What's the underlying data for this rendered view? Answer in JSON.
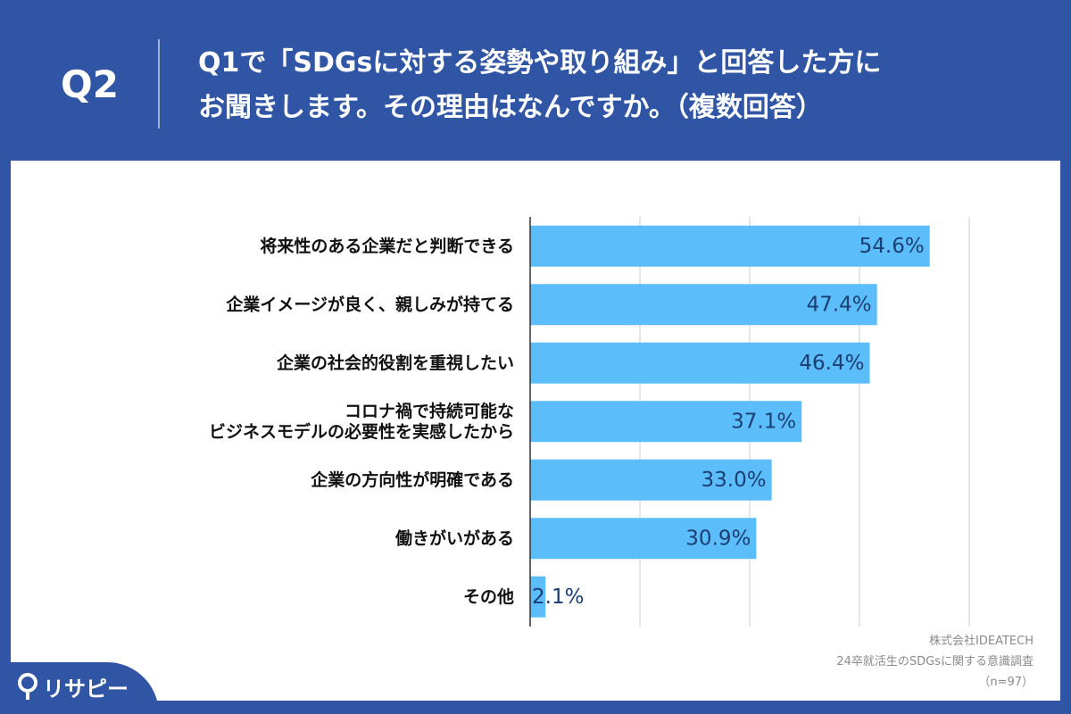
{
  "header": {
    "question_number": "Q2",
    "title_line1": "Q1で「SDGsに対する姿勢や取り組み」と回答した方に",
    "title_line2": "お聞きします。その理由はなんですか。（複数回答）"
  },
  "chart_data": {
    "type": "bar",
    "orientation": "horizontal",
    "categories": [
      [
        "将来性のある企業だと判断できる"
      ],
      [
        "企業イメージが良く、親しみが持てる"
      ],
      [
        "企業の社会的役割を重視したい"
      ],
      [
        "コロナ禍で持続可能な",
        "ビジネスモデルの必要性を実感したから"
      ],
      [
        "企業の方向性が明確である"
      ],
      [
        "働きがいがある"
      ],
      [
        "その他"
      ]
    ],
    "values": [
      54.6,
      47.4,
      46.4,
      37.1,
      33.0,
      30.9,
      2.1
    ],
    "value_labels": [
      "54.6%",
      "47.4%",
      "46.4%",
      "37.1%",
      "33.0%",
      "30.9%",
      "2.1%"
    ],
    "xlim": [
      0,
      60
    ],
    "grid": true,
    "bar_color": "#5bbdfa",
    "grid_color": "#cccccc"
  },
  "footnote": {
    "company": "株式会社IDEATECH",
    "survey": "24卒就活生のSDGsに関する意識調査",
    "sample": "（n=97）"
  },
  "logo": {
    "text": "リサピー",
    "icon": "pin-icon"
  }
}
